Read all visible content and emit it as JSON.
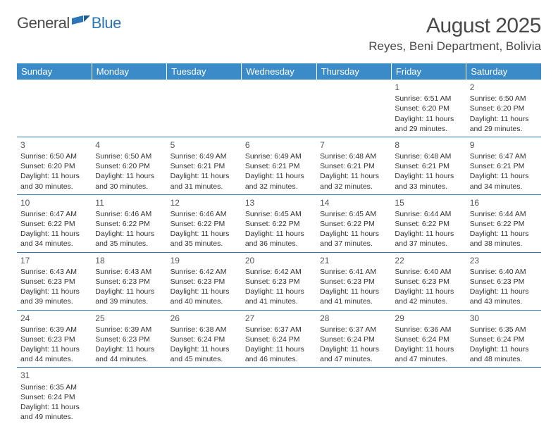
{
  "logo": {
    "general": "General",
    "blue": "Blue"
  },
  "title": "August 2025",
  "location": "Reyes, Beni Department, Bolivia",
  "colors": {
    "header_bg": "#3b8bc9",
    "header_text": "#ffffff",
    "rule": "#2e75b6",
    "text": "#333333",
    "title_text": "#4a4a4a",
    "page_bg": "#ffffff"
  },
  "days_of_week": [
    "Sunday",
    "Monday",
    "Tuesday",
    "Wednesday",
    "Thursday",
    "Friday",
    "Saturday"
  ],
  "grid": {
    "first_weekday_index": 5,
    "num_days": 31
  },
  "days": {
    "1": {
      "sunrise": "6:51 AM",
      "sunset": "6:20 PM",
      "daylight": "11 hours and 29 minutes."
    },
    "2": {
      "sunrise": "6:50 AM",
      "sunset": "6:20 PM",
      "daylight": "11 hours and 29 minutes."
    },
    "3": {
      "sunrise": "6:50 AM",
      "sunset": "6:20 PM",
      "daylight": "11 hours and 30 minutes."
    },
    "4": {
      "sunrise": "6:50 AM",
      "sunset": "6:20 PM",
      "daylight": "11 hours and 30 minutes."
    },
    "5": {
      "sunrise": "6:49 AM",
      "sunset": "6:21 PM",
      "daylight": "11 hours and 31 minutes."
    },
    "6": {
      "sunrise": "6:49 AM",
      "sunset": "6:21 PM",
      "daylight": "11 hours and 32 minutes."
    },
    "7": {
      "sunrise": "6:48 AM",
      "sunset": "6:21 PM",
      "daylight": "11 hours and 32 minutes."
    },
    "8": {
      "sunrise": "6:48 AM",
      "sunset": "6:21 PM",
      "daylight": "11 hours and 33 minutes."
    },
    "9": {
      "sunrise": "6:47 AM",
      "sunset": "6:21 PM",
      "daylight": "11 hours and 34 minutes."
    },
    "10": {
      "sunrise": "6:47 AM",
      "sunset": "6:22 PM",
      "daylight": "11 hours and 34 minutes."
    },
    "11": {
      "sunrise": "6:46 AM",
      "sunset": "6:22 PM",
      "daylight": "11 hours and 35 minutes."
    },
    "12": {
      "sunrise": "6:46 AM",
      "sunset": "6:22 PM",
      "daylight": "11 hours and 35 minutes."
    },
    "13": {
      "sunrise": "6:45 AM",
      "sunset": "6:22 PM",
      "daylight": "11 hours and 36 minutes."
    },
    "14": {
      "sunrise": "6:45 AM",
      "sunset": "6:22 PM",
      "daylight": "11 hours and 37 minutes."
    },
    "15": {
      "sunrise": "6:44 AM",
      "sunset": "6:22 PM",
      "daylight": "11 hours and 37 minutes."
    },
    "16": {
      "sunrise": "6:44 AM",
      "sunset": "6:22 PM",
      "daylight": "11 hours and 38 minutes."
    },
    "17": {
      "sunrise": "6:43 AM",
      "sunset": "6:23 PM",
      "daylight": "11 hours and 39 minutes."
    },
    "18": {
      "sunrise": "6:43 AM",
      "sunset": "6:23 PM",
      "daylight": "11 hours and 39 minutes."
    },
    "19": {
      "sunrise": "6:42 AM",
      "sunset": "6:23 PM",
      "daylight": "11 hours and 40 minutes."
    },
    "20": {
      "sunrise": "6:42 AM",
      "sunset": "6:23 PM",
      "daylight": "11 hours and 41 minutes."
    },
    "21": {
      "sunrise": "6:41 AM",
      "sunset": "6:23 PM",
      "daylight": "11 hours and 41 minutes."
    },
    "22": {
      "sunrise": "6:40 AM",
      "sunset": "6:23 PM",
      "daylight": "11 hours and 42 minutes."
    },
    "23": {
      "sunrise": "6:40 AM",
      "sunset": "6:23 PM",
      "daylight": "11 hours and 43 minutes."
    },
    "24": {
      "sunrise": "6:39 AM",
      "sunset": "6:23 PM",
      "daylight": "11 hours and 44 minutes."
    },
    "25": {
      "sunrise": "6:39 AM",
      "sunset": "6:23 PM",
      "daylight": "11 hours and 44 minutes."
    },
    "26": {
      "sunrise": "6:38 AM",
      "sunset": "6:24 PM",
      "daylight": "11 hours and 45 minutes."
    },
    "27": {
      "sunrise": "6:37 AM",
      "sunset": "6:24 PM",
      "daylight": "11 hours and 46 minutes."
    },
    "28": {
      "sunrise": "6:37 AM",
      "sunset": "6:24 PM",
      "daylight": "11 hours and 47 minutes."
    },
    "29": {
      "sunrise": "6:36 AM",
      "sunset": "6:24 PM",
      "daylight": "11 hours and 47 minutes."
    },
    "30": {
      "sunrise": "6:35 AM",
      "sunset": "6:24 PM",
      "daylight": "11 hours and 48 minutes."
    },
    "31": {
      "sunrise": "6:35 AM",
      "sunset": "6:24 PM",
      "daylight": "11 hours and 49 minutes."
    }
  },
  "labels": {
    "sunrise_prefix": "Sunrise: ",
    "sunset_prefix": "Sunset: ",
    "daylight_prefix": "Daylight: "
  }
}
